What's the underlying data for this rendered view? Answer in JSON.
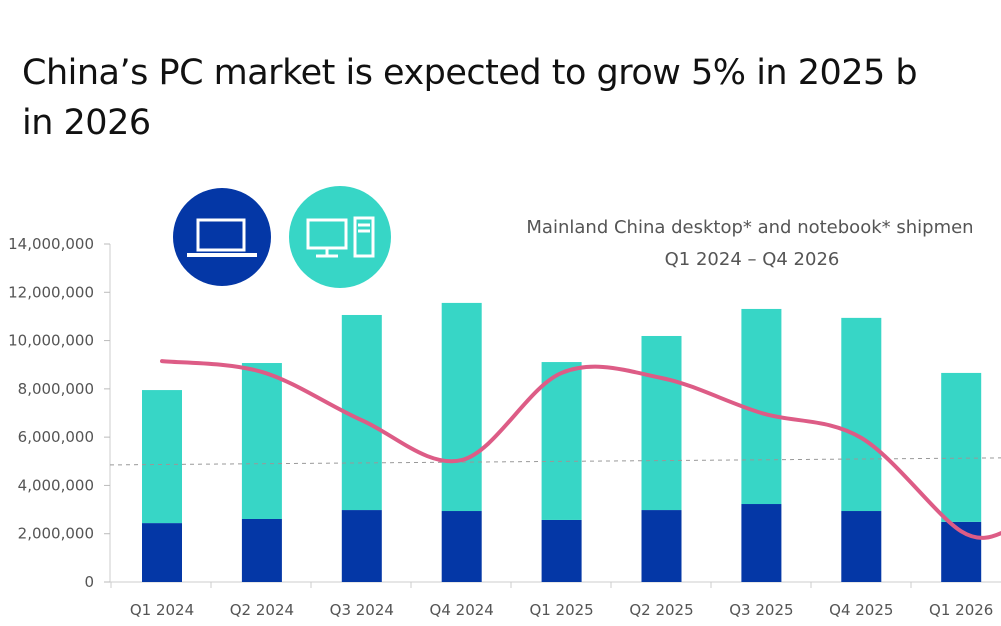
{
  "page_title": {
    "line1": "China’s PC market is expected to grow 5% in 2025 b",
    "line2": "in 2026"
  },
  "legend_icons": [
    {
      "icon": "laptop-icon",
      "color": "#0437A6"
    },
    {
      "icon": "desktop-icon",
      "color": "#37D6C6"
    }
  ],
  "chart_data": {
    "type": "bar",
    "stacked": true,
    "title": "Mainland China desktop* and notebook* shipmen",
    "subtitle": "Q1 2024 – Q4 2026",
    "categories": [
      "Q1 2024",
      "Q2 2024",
      "Q3 2024",
      "Q4 2024",
      "Q1 2025",
      "Q2 2025",
      "Q3 2025",
      "Q4 2025",
      "Q1 2026"
    ],
    "series": [
      {
        "color": "#0437A6",
        "values": [
          2440000,
          2610000,
          2980000,
          2940000,
          2570000,
          2980000,
          3230000,
          2940000,
          2490000
        ]
      },
      {
        "color": "#37D6C6",
        "values": [
          5510000,
          6460000,
          8080000,
          8620000,
          6540000,
          7210000,
          8080000,
          8000000,
          6170000
        ]
      }
    ],
    "line": {
      "color": "#DD5C86",
      "values": [
        9150000,
        8700000,
        6700000,
        5050000,
        8660000,
        8450000,
        7000000,
        5970000,
        2100000
      ]
    },
    "dashed_reference": {
      "color": "#999999",
      "values_start_end": [
        4850000,
        5140000
      ]
    },
    "y_ticks": [
      "0",
      "2,000,000",
      "4,000,000",
      "6,000,000",
      "8,000,000",
      "10,000,000",
      "12,000,000",
      "14,000,000"
    ],
    "ylim": [
      0,
      14000000
    ],
    "grid": false,
    "xlabel": "",
    "ylabel": ""
  }
}
